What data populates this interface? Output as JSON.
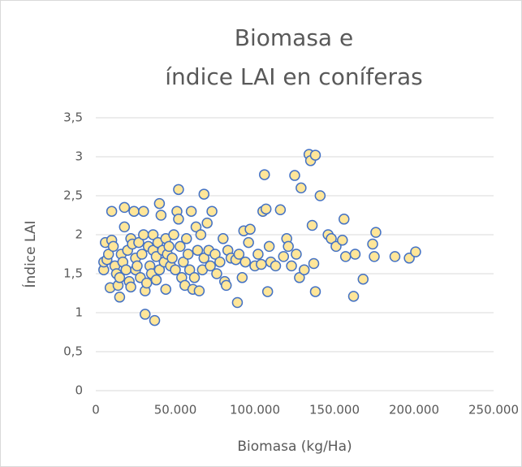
{
  "chart_data": {
    "type": "scatter",
    "title": [
      "Biomasa e",
      "índice LAI en coníferas"
    ],
    "xlabel": "Biomasa (kg/Ha)",
    "ylabel": "Índice LAI",
    "color": "#ffe699",
    "edgecolor": "#4472c4",
    "grid": true,
    "xlim": [
      0,
      250000
    ],
    "xticks": [
      0,
      {
        "value": 50000,
        "label": "50.000"
      },
      {
        "value": 100000,
        "label": "100.000"
      },
      {
        "value": 150000,
        "label": "150.000"
      },
      {
        "value": 200000,
        "label": "200.000"
      },
      {
        "value": 250000,
        "label": "250.000"
      }
    ],
    "ylim": [
      0,
      3.5
    ],
    "yticks": [
      0,
      {
        "value": 0.5,
        "label": "0,5"
      },
      1,
      {
        "value": 1.5,
        "label": "1,5"
      },
      2,
      {
        "value": 2.5,
        "label": "2,5"
      },
      3,
      {
        "value": 3.5,
        "label": "3,5"
      }
    ],
    "x": [
      5000,
      5000,
      6000,
      7000,
      8000,
      9000,
      10000,
      10000,
      11000,
      12000,
      13000,
      14000,
      15000,
      15000,
      16000,
      17000,
      18000,
      18000,
      19000,
      20000,
      21000,
      22000,
      22000,
      23000,
      24000,
      25000,
      25000,
      26000,
      27000,
      28000,
      29000,
      30000,
      30000,
      31000,
      31000,
      32000,
      33000,
      34000,
      35000,
      36000,
      36000,
      37000,
      38000,
      38000,
      39000,
      40000,
      40000,
      41000,
      42000,
      43000,
      44000,
      44000,
      45000,
      46000,
      47000,
      48000,
      49000,
      50000,
      51000,
      52000,
      52000,
      53000,
      54000,
      55000,
      56000,
      57000,
      58000,
      59000,
      60000,
      61000,
      62000,
      63000,
      64000,
      65000,
      66000,
      67000,
      68000,
      68000,
      70000,
      71000,
      72000,
      73000,
      75000,
      76000,
      78000,
      80000,
      81000,
      82000,
      83000,
      85000,
      88000,
      89000,
      90000,
      92000,
      93000,
      94000,
      96000,
      97000,
      100000,
      102000,
      104000,
      105000,
      106000,
      107000,
      108000,
      109000,
      110000,
      113000,
      116000,
      118000,
      120000,
      121000,
      123000,
      125000,
      126000,
      128000,
      129000,
      131000,
      134000,
      135000,
      136000,
      137000,
      138000,
      138000,
      141000,
      146000,
      148000,
      151000,
      155000,
      156000,
      157000,
      162000,
      163000,
      168000,
      174000,
      175000,
      176000,
      188000,
      197000,
      201000
    ],
    "values": [
      1.55,
      1.65,
      1.9,
      1.68,
      1.75,
      1.32,
      2.3,
      1.93,
      1.85,
      1.6,
      1.5,
      1.35,
      1.2,
      1.45,
      1.75,
      1.65,
      2.35,
      2.1,
      1.55,
      1.8,
      1.4,
      1.95,
      1.33,
      1.88,
      2.3,
      1.7,
      1.55,
      1.6,
      1.9,
      1.45,
      1.75,
      2.0,
      2.3,
      1.28,
      0.98,
      1.38,
      1.85,
      1.6,
      1.5,
      1.8,
      2.0,
      0.9,
      1.42,
      1.72,
      1.9,
      2.4,
      1.55,
      2.25,
      1.8,
      1.65,
      1.3,
      1.95,
      1.75,
      1.85,
      1.6,
      1.7,
      2.0,
      1.55,
      2.3,
      2.58,
      2.2,
      1.85,
      1.45,
      1.65,
      1.35,
      1.95,
      1.75,
      1.55,
      2.3,
      1.3,
      1.45,
      2.1,
      1.8,
      1.28,
      2.0,
      1.55,
      2.52,
      1.7,
      2.15,
      1.8,
      1.6,
      2.3,
      1.75,
      1.5,
      1.65,
      1.95,
      1.4,
      1.35,
      1.8,
      1.7,
      1.68,
      1.13,
      1.75,
      1.45,
      2.05,
      1.65,
      1.9,
      2.07,
      1.6,
      1.75,
      1.62,
      2.3,
      2.77,
      2.33,
      1.27,
      1.85,
      1.65,
      1.6,
      2.32,
      1.72,
      1.95,
      1.85,
      1.6,
      2.76,
      1.75,
      1.45,
      2.6,
      1.55,
      3.03,
      2.95,
      2.12,
      1.63,
      3.02,
      1.27,
      2.5,
      2.0,
      1.95,
      1.85,
      1.93,
      2.2,
      1.72,
      1.21,
      1.75,
      1.43,
      1.88,
      1.72,
      2.03,
      1.72,
      1.7,
      1.78
    ]
  }
}
